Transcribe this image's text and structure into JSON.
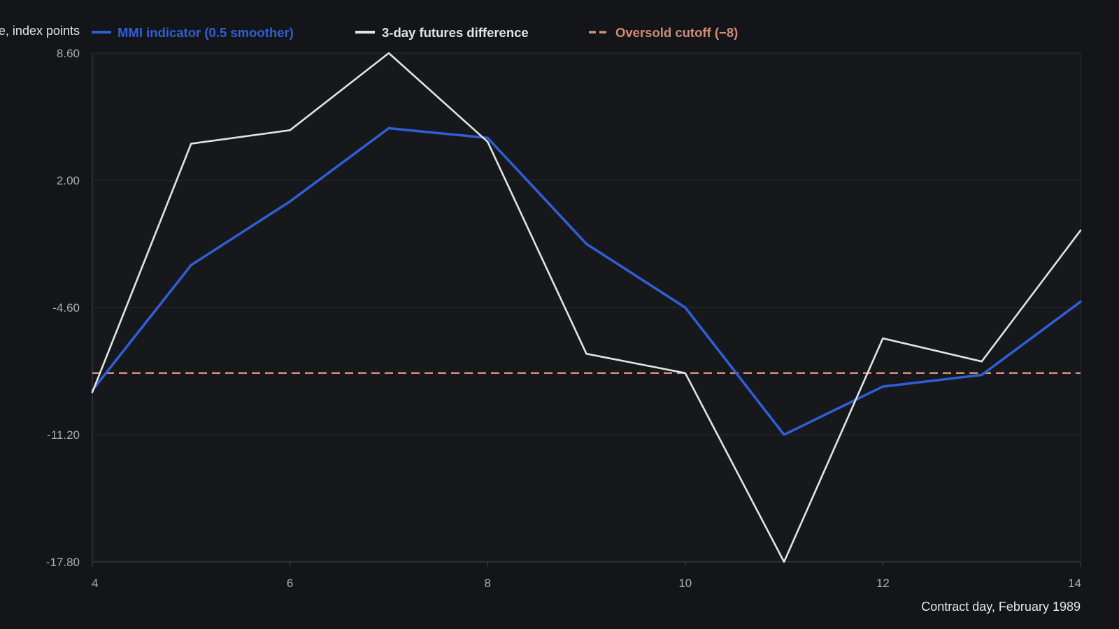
{
  "chart_data": {
    "type": "line",
    "xlabel": "Contract day, February 1989",
    "ylabel": "Change, index points",
    "xlim": [
      4,
      14
    ],
    "ylim": [
      -17.8,
      8.6
    ],
    "xticks": [
      {
        "value": 4,
        "label": "4"
      },
      {
        "value": 6,
        "label": "6"
      },
      {
        "value": 8,
        "label": "8"
      },
      {
        "value": 10,
        "label": "10"
      },
      {
        "value": 12,
        "label": "12"
      },
      {
        "value": 14,
        "label": "14"
      }
    ],
    "yticks": [
      {
        "value": 8.6,
        "label": "8.60"
      },
      {
        "value": 2.0,
        "label": "2.00"
      },
      {
        "value": -4.6,
        "label": "-4.60"
      },
      {
        "value": -11.2,
        "label": "-11.20"
      },
      {
        "value": -17.8,
        "label": "-17.80"
      }
    ],
    "grid": true,
    "legend_position": "top-left",
    "x": [
      4,
      5,
      6,
      7,
      8,
      9,
      10,
      11,
      12,
      13,
      14
    ],
    "series": [
      {
        "name": "MMI indicator (0.5 smoother)",
        "color": "#2f5fd6",
        "values": [
          -8.9,
          -2.4,
          0.9,
          4.7,
          4.2,
          -1.3,
          -4.6,
          -11.2,
          -8.7,
          -8.1,
          -4.3
        ]
      },
      {
        "name": "3-day futures difference",
        "color": "#e3e3e3",
        "values": [
          -9.0,
          3.9,
          4.6,
          8.6,
          4.0,
          -7.0,
          -8.0,
          -17.8,
          -6.2,
          -7.4,
          -0.6
        ]
      }
    ],
    "reference_line": {
      "name": "Oversold cutoff (−8)",
      "value": -8,
      "color": "#d08d77",
      "style": "dashed"
    }
  }
}
